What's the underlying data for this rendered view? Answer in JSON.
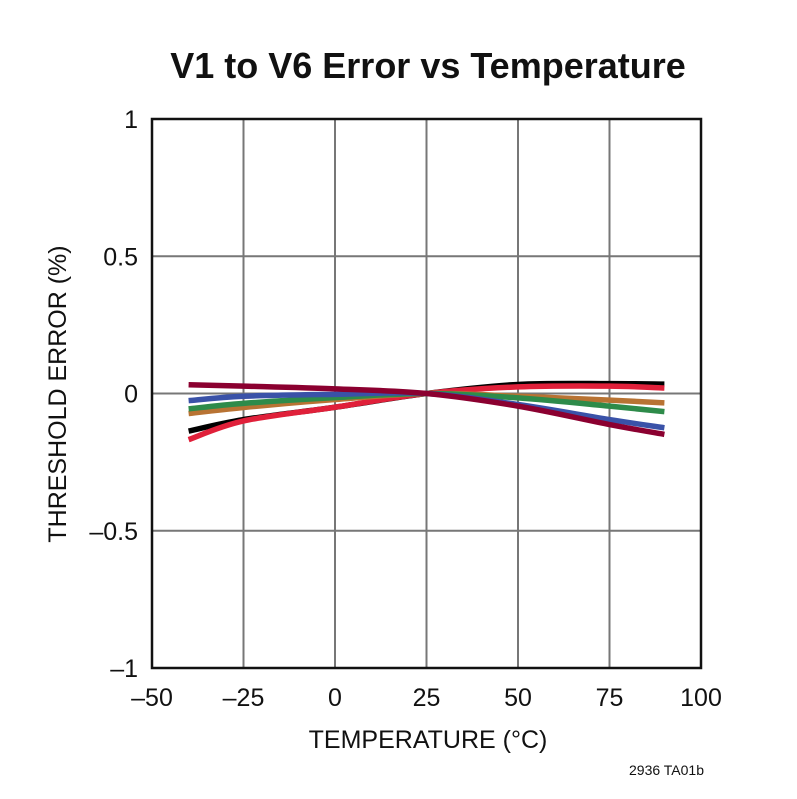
{
  "chart_data": {
    "type": "line",
    "title": "V1 to V6 Error vs Temperature",
    "xlabel": "TEMPERATURE (°C)",
    "ylabel": "THRESHOLD ERROR (%)",
    "xlim": [
      -50,
      100
    ],
    "ylim": [
      -1,
      1
    ],
    "xticks": [
      -50,
      -25,
      0,
      25,
      50,
      75,
      100
    ],
    "xtick_labels": [
      "–50",
      "–25",
      "0",
      "25",
      "50",
      "75",
      "100"
    ],
    "yticks": [
      1,
      0.5,
      0,
      -0.5,
      -1
    ],
    "ytick_labels": [
      "1",
      "0.5",
      "0",
      "–0.5",
      "–1"
    ],
    "grid": true,
    "x": [
      -40,
      -25,
      0,
      25,
      50,
      75,
      90
    ],
    "series": [
      {
        "color": "#000000",
        "values": [
          -0.137,
          -0.095,
          -0.05,
          0,
          0.033,
          0.036,
          0.034
        ]
      },
      {
        "color": "#e0203a",
        "values": [
          -0.168,
          -0.1,
          -0.05,
          0,
          0.024,
          0.027,
          0.02
        ]
      },
      {
        "color": "#b87333",
        "values": [
          -0.073,
          -0.051,
          -0.022,
          0,
          -0.01,
          -0.024,
          -0.034
        ]
      },
      {
        "color": "#2e8b4a",
        "values": [
          -0.056,
          -0.036,
          -0.015,
          0,
          -0.016,
          -0.046,
          -0.066
        ]
      },
      {
        "color": "#3a52a8",
        "values": [
          -0.026,
          -0.01,
          -0.003,
          0,
          -0.04,
          -0.095,
          -0.125
        ]
      },
      {
        "color": "#8b0030",
        "values": [
          0.032,
          0.027,
          0.017,
          0,
          -0.046,
          -0.113,
          -0.149
        ]
      }
    ],
    "note": "2936 TA01b"
  }
}
